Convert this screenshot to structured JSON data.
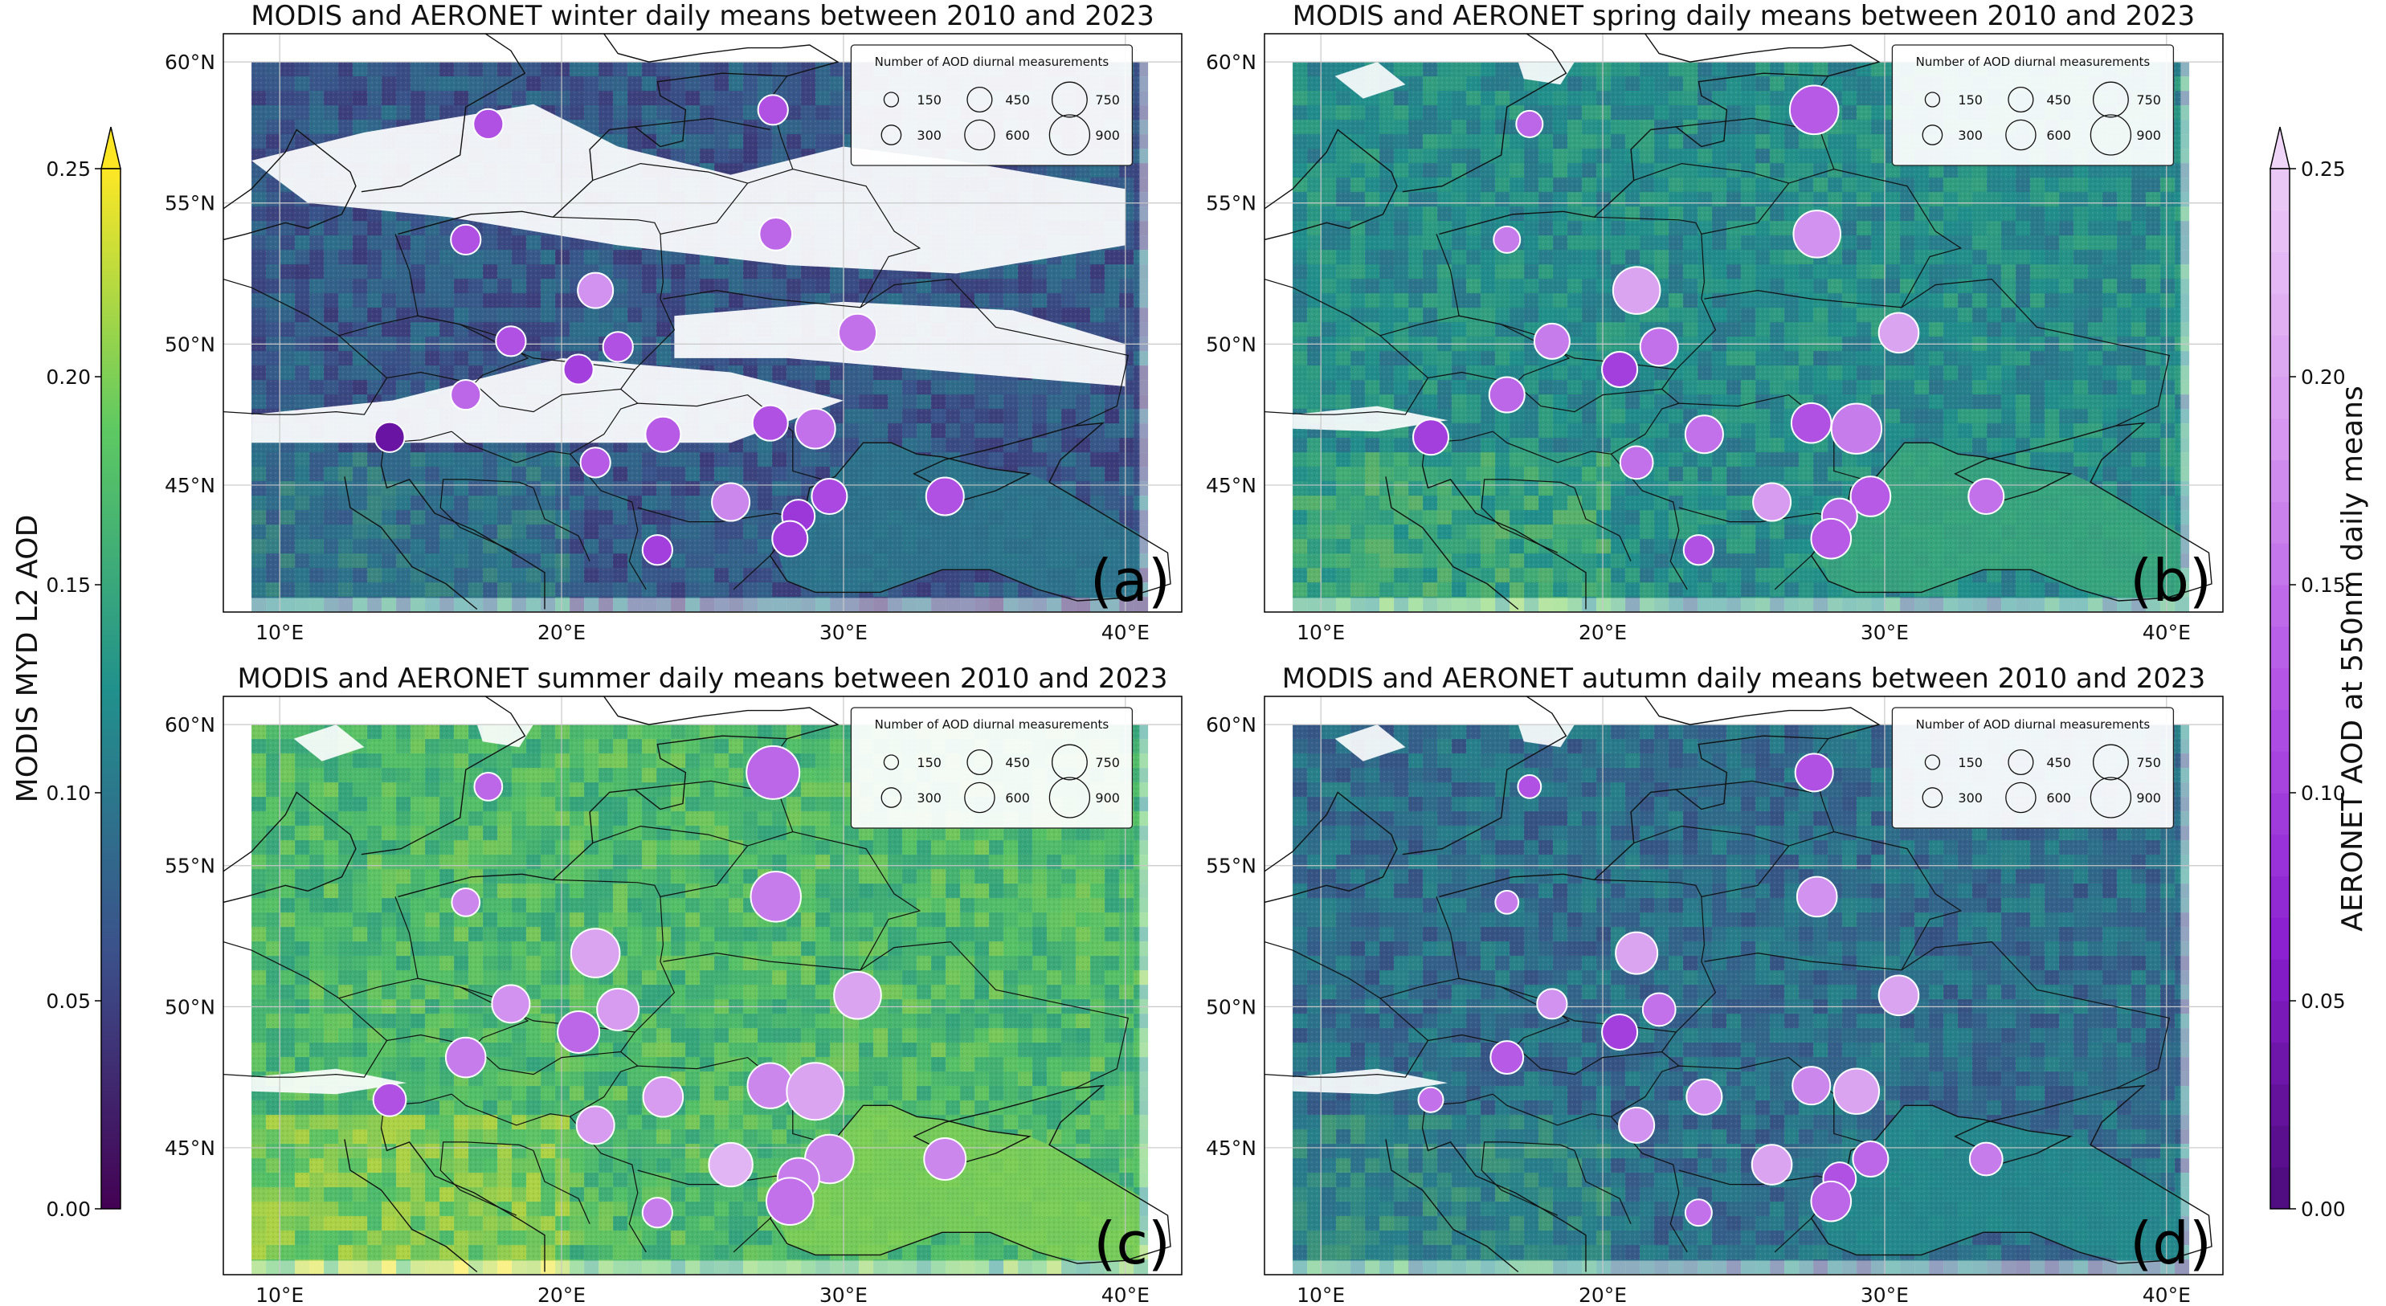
{
  "chart_data": {
    "type": "scatter",
    "kind": "geographic map panels with gridded background and bubble markers",
    "left_colorbar": {
      "label": "MODIS MYD L2 AOD",
      "ticks": [
        "0.00",
        "0.05",
        "0.10",
        "0.15",
        "0.20",
        "0.25"
      ],
      "range": [
        0,
        0.25
      ],
      "colors": [
        "#440154",
        "#3b528b",
        "#21918c",
        "#5ec962",
        "#fde725"
      ]
    },
    "right_colorbar": {
      "label": "AERONET AOD at 550nm daily means",
      "ticks": [
        "0.00",
        "0.05",
        "0.10",
        "0.15",
        "0.20",
        "0.25"
      ],
      "range": [
        0,
        0.25
      ],
      "colors": [
        "#4b0a7a",
        "#8a1fd0",
        "#b455e6",
        "#d69af0",
        "#ecccf7"
      ]
    },
    "legend": {
      "title": "Number of AOD diurnal measurements",
      "sizes": [
        "150",
        "300",
        "450",
        "600",
        "750",
        "900"
      ]
    },
    "xaxis_ticks": [
      "10°E",
      "20°E",
      "30°E",
      "40°E"
    ],
    "yaxis_ticks": [
      "45°N",
      "50°N",
      "55°N",
      "60°N"
    ],
    "xlim": [
      8,
      42
    ],
    "ylim": [
      40.5,
      61
    ],
    "stations": [
      {
        "lon": 27.5,
        "lat": 58.3
      },
      {
        "lon": 27.6,
        "lat": 53.9
      },
      {
        "lon": 21.2,
        "lat": 51.9
      },
      {
        "lon": 30.5,
        "lat": 50.4
      },
      {
        "lon": 18.2,
        "lat": 50.1
      },
      {
        "lon": 22.0,
        "lat": 49.9
      },
      {
        "lon": 20.6,
        "lat": 49.1
      },
      {
        "lon": 16.6,
        "lat": 48.2
      },
      {
        "lon": 27.4,
        "lat": 47.2
      },
      {
        "lon": 29.0,
        "lat": 47.0
      },
      {
        "lon": 23.6,
        "lat": 46.8
      },
      {
        "lon": 13.9,
        "lat": 46.7
      },
      {
        "lon": 21.2,
        "lat": 45.8
      },
      {
        "lon": 26.0,
        "lat": 44.4
      },
      {
        "lon": 29.5,
        "lat": 44.6
      },
      {
        "lon": 33.6,
        "lat": 44.6
      },
      {
        "lon": 28.4,
        "lat": 43.9
      },
      {
        "lon": 28.1,
        "lat": 43.1
      },
      {
        "lon": 23.4,
        "lat": 42.7
      },
      {
        "lon": 16.6,
        "lat": 53.7
      },
      {
        "lon": 17.4,
        "lat": 57.8
      }
    ],
    "panels": [
      {
        "id": "a",
        "title": "MODIS and AERONET winter daily means between 2010 and 2023",
        "letter": "(a)",
        "season": "winter",
        "modis_mean_aod": 0.07,
        "aeronet_aod": [
          0.12,
          0.14,
          0.18,
          0.15,
          0.12,
          0.12,
          0.1,
          0.14,
          0.12,
          0.15,
          0.13,
          0.03,
          0.13,
          0.17,
          0.11,
          0.12,
          0.09,
          0.1,
          0.1,
          0.12,
          0.12
        ],
        "counts": [
          150,
          200,
          250,
          300,
          150,
          150,
          150,
          150,
          250,
          350,
          250,
          150,
          150,
          300,
          250,
          300,
          200,
          250,
          150,
          150,
          150
        ]
      },
      {
        "id": "b",
        "title": "MODIS and AERONET spring daily means between 2010 and 2023",
        "letter": "(b)",
        "season": "spring",
        "modis_mean_aod": 0.12,
        "aeronet_aod": [
          0.13,
          0.18,
          0.2,
          0.2,
          0.16,
          0.15,
          0.1,
          0.14,
          0.12,
          0.16,
          0.15,
          0.1,
          0.15,
          0.19,
          0.13,
          0.15,
          0.14,
          0.13,
          0.12,
          0.16,
          0.14
        ],
        "counts": [
          600,
          550,
          550,
          350,
          250,
          300,
          250,
          250,
          350,
          650,
          300,
          250,
          200,
          300,
          350,
          250,
          250,
          350,
          150,
          100,
          100
        ]
      },
      {
        "id": "c",
        "title": "MODIS and AERONET summer daily means between 2010 and 2023",
        "letter": "(c)",
        "season": "summer",
        "modis_mean_aod": 0.17,
        "aeronet_aod": [
          0.14,
          0.16,
          0.2,
          0.2,
          0.18,
          0.19,
          0.14,
          0.16,
          0.17,
          0.2,
          0.19,
          0.12,
          0.19,
          0.22,
          0.17,
          0.17,
          0.16,
          0.15,
          0.16,
          0.17,
          0.14
        ],
        "counts": [
          750,
          650,
          600,
          550,
          300,
          400,
          400,
          350,
          500,
          900,
          350,
          200,
          300,
          450,
          600,
          400,
          400,
          550,
          150,
          120,
          120
        ]
      },
      {
        "id": "d",
        "title": "MODIS and AERONET autumn daily means between 2010 and 2023",
        "letter": "(d)",
        "season": "autumn",
        "modis_mean_aod": 0.09,
        "aeronet_aod": [
          0.12,
          0.18,
          0.2,
          0.2,
          0.18,
          0.15,
          0.1,
          0.13,
          0.17,
          0.2,
          0.18,
          0.15,
          0.18,
          0.2,
          0.14,
          0.16,
          0.12,
          0.14,
          0.15,
          0.16,
          0.12
        ],
        "counts": [
          300,
          350,
          400,
          350,
          150,
          200,
          250,
          200,
          300,
          500,
          250,
          80,
          250,
          350,
          250,
          200,
          200,
          350,
          100,
          60,
          60
        ]
      }
    ]
  }
}
